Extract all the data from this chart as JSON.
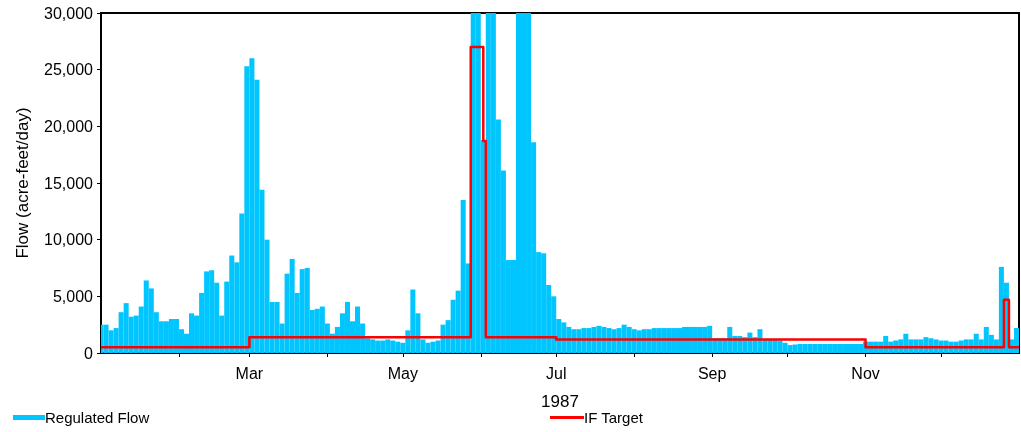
{
  "chart_data": {
    "type": "bar",
    "xlabel": "1987",
    "ylabel": "Flow (acre-feet/day)",
    "xlim": [
      "1987-01-01",
      "1988-01-01"
    ],
    "xticks": [
      {
        "value": "1987-02-01",
        "label": null
      },
      {
        "value": "1987-03-01",
        "label": "Mar"
      },
      {
        "value": "1987-04-01",
        "label": null
      },
      {
        "value": "1987-05-01",
        "label": "May"
      },
      {
        "value": "1987-06-01",
        "label": null
      },
      {
        "value": "1987-07-01",
        "label": "Jul"
      },
      {
        "value": "1987-08-01",
        "label": null
      },
      {
        "value": "1987-09-01",
        "label": "Sep"
      },
      {
        "value": "1987-10-01",
        "label": null
      },
      {
        "value": "1987-11-01",
        "label": "Nov"
      },
      {
        "value": "1987-12-01",
        "label": null
      }
    ],
    "ylim": [
      0,
      30000
    ],
    "yticks": [
      0,
      {
        "value": 5000,
        "label": "5,000"
      },
      {
        "value": 10000,
        "label": "10,000"
      },
      {
        "value": 15000,
        "label": "15,000"
      },
      {
        "value": 20000,
        "label": "20,000"
      },
      {
        "value": 25000,
        "label": "25,000"
      },
      {
        "value": 30000,
        "label": "30,000"
      }
    ],
    "grid": false,
    "legend": "bottom",
    "marker": "none",
    "line_style": "solid",
    "series": [
      {
        "name": "Regulated Flow",
        "color": "#00c5ff",
        "x": [
          "1987-01-01",
          "1987-01-03",
          "1987-01-05",
          "1987-01-07",
          "1987-01-09",
          "1987-01-11",
          "1987-01-13",
          "1987-01-15",
          "1987-01-17",
          "1987-01-19",
          "1987-01-21",
          "1987-01-23",
          "1987-01-25",
          "1987-01-27",
          "1987-01-29",
          "1987-01-31",
          "1987-02-02",
          "1987-02-04",
          "1987-02-06",
          "1987-02-08",
          "1987-02-10",
          "1987-02-12",
          "1987-02-14",
          "1987-02-16",
          "1987-02-18",
          "1987-02-20",
          "1987-02-22",
          "1987-02-24",
          "1987-02-26",
          "1987-02-28",
          "1987-03-02",
          "1987-03-04",
          "1987-03-06",
          "1987-03-08",
          "1987-03-10",
          "1987-03-12",
          "1987-03-14",
          "1987-03-16",
          "1987-03-18",
          "1987-03-20",
          "1987-03-22",
          "1987-03-24",
          "1987-03-26",
          "1987-03-28",
          "1987-03-30",
          "1987-04-01",
          "1987-04-03",
          "1987-04-05",
          "1987-04-07",
          "1987-04-09",
          "1987-04-11",
          "1987-04-13",
          "1987-04-15",
          "1987-04-17",
          "1987-04-19",
          "1987-04-21",
          "1987-04-23",
          "1987-04-25",
          "1987-04-27",
          "1987-04-29",
          "1987-05-01",
          "1987-05-03",
          "1987-05-05",
          "1987-05-07",
          "1987-05-09",
          "1987-05-11",
          "1987-05-13",
          "1987-05-15",
          "1987-05-17",
          "1987-05-19",
          "1987-05-21",
          "1987-05-23",
          "1987-05-25",
          "1987-05-27",
          "1987-05-29",
          "1987-05-31",
          "1987-06-02",
          "1987-06-04",
          "1987-06-06",
          "1987-06-08",
          "1987-06-10",
          "1987-06-12",
          "1987-06-14",
          "1987-06-16",
          "1987-06-18",
          "1987-06-20",
          "1987-06-22",
          "1987-06-24",
          "1987-06-26",
          "1987-06-28",
          "1987-06-30",
          "1987-07-02",
          "1987-07-04",
          "1987-07-06",
          "1987-07-08",
          "1987-07-10",
          "1987-07-12",
          "1987-07-14",
          "1987-07-16",
          "1987-07-18",
          "1987-07-20",
          "1987-07-22",
          "1987-07-24",
          "1987-07-26",
          "1987-07-28",
          "1987-07-30",
          "1987-08-01",
          "1987-08-03",
          "1987-08-05",
          "1987-08-07",
          "1987-08-09",
          "1987-08-11",
          "1987-08-13",
          "1987-08-15",
          "1987-08-17",
          "1987-08-19",
          "1987-08-21",
          "1987-08-23",
          "1987-08-25",
          "1987-08-27",
          "1987-08-29",
          "1987-08-31",
          "1987-09-02",
          "1987-09-04",
          "1987-09-06",
          "1987-09-08",
          "1987-09-10",
          "1987-09-12",
          "1987-09-14",
          "1987-09-16",
          "1987-09-18",
          "1987-09-20",
          "1987-09-22",
          "1987-09-24",
          "1987-09-26",
          "1987-09-28",
          "1987-09-30",
          "1987-10-02",
          "1987-10-04",
          "1987-10-06",
          "1987-10-08",
          "1987-10-10",
          "1987-10-12",
          "1987-10-14",
          "1987-10-16",
          "1987-10-18",
          "1987-10-20",
          "1987-10-22",
          "1987-10-24",
          "1987-10-26",
          "1987-10-28",
          "1987-10-30",
          "1987-11-01",
          "1987-11-03",
          "1987-11-05",
          "1987-11-07",
          "1987-11-09",
          "1987-11-11",
          "1987-11-13",
          "1987-11-15",
          "1987-11-17",
          "1987-11-19",
          "1987-11-21",
          "1987-11-23",
          "1987-11-25",
          "1987-11-27",
          "1987-11-29",
          "1987-12-01",
          "1987-12-03",
          "1987-12-05",
          "1987-12-07",
          "1987-12-09",
          "1987-12-11",
          "1987-12-13",
          "1987-12-15",
          "1987-12-17",
          "1987-12-19",
          "1987-12-21",
          "1987-12-23",
          "1987-12-25",
          "1987-12-27",
          "1987-12-29",
          "1987-12-31"
        ],
        "values": [
          2500,
          2500,
          2000,
          2200,
          3600,
          4400,
          3200,
          3300,
          4100,
          6400,
          5700,
          3600,
          2800,
          2800,
          3000,
          3000,
          2100,
          1700,
          3500,
          3300,
          5300,
          7200,
          7300,
          6200,
          3300,
          6300,
          8600,
          8000,
          12300,
          25300,
          26000,
          24100,
          14400,
          10000,
          4500,
          4500,
          2600,
          7000,
          8300,
          5300,
          7400,
          7500,
          3800,
          3900,
          4100,
          2600,
          1700,
          2300,
          3500,
          4500,
          2800,
          4100,
          2600,
          1300,
          1200,
          1100,
          1100,
          1200,
          1100,
          1000,
          900,
          2000,
          5600,
          3500,
          1200,
          900,
          1000,
          1100,
          2500,
          2900,
          4700,
          5500,
          13500,
          7900,
          30000,
          30000,
          18800,
          30000,
          30000,
          20600,
          16100,
          8200,
          8200,
          30000,
          30000,
          30000,
          18600,
          8900,
          8800,
          6000,
          5000,
          3000,
          2700,
          2300,
          2100,
          2100,
          2200,
          2200,
          2300,
          2400,
          2300,
          2200,
          2100,
          2200,
          2500,
          2300,
          2100,
          2000,
          2100,
          2100,
          2200,
          2200,
          2200,
          2200,
          2200,
          2200,
          2300,
          2300,
          2300,
          2300,
          2300,
          2400,
          1300,
          1300,
          1300,
          2300,
          1500,
          1500,
          1400,
          1800,
          1400,
          2100,
          1200,
          1200,
          1200,
          1100,
          900,
          700,
          750,
          800,
          800,
          800,
          800,
          800,
          800,
          800,
          800,
          800,
          800,
          800,
          800,
          800,
          1000,
          1000,
          1000,
          1000,
          1500,
          1000,
          1100,
          1200,
          1700,
          1200,
          1200,
          1200,
          1400,
          1300,
          1200,
          1100,
          1100,
          1000,
          1000,
          1100,
          1200,
          1200,
          1700,
          1200,
          2300,
          1600,
          1200,
          7600,
          6200,
          1200,
          2200
        ]
      },
      {
        "name": "IF Target",
        "type": "step",
        "color": "#ff0000",
        "x": [
          "1987-01-01",
          "1987-03-01",
          "1987-05-28",
          "1987-06-02",
          "1987-06-03",
          "1987-07-01",
          "1987-11-01",
          "1987-12-26",
          "1987-12-28",
          "1988-01-01"
        ],
        "values": [
          500,
          1400,
          27000,
          18700,
          1400,
          1200,
          500,
          4700,
          500,
          500
        ]
      }
    ]
  }
}
